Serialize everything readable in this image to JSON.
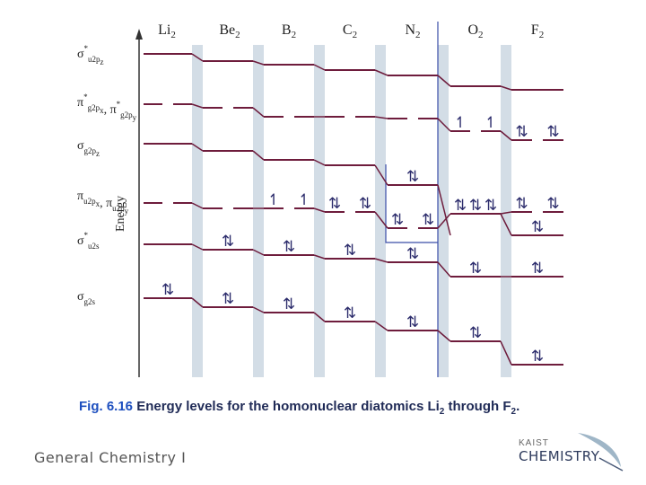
{
  "molecules": [
    {
      "base": "Li",
      "sub": "2"
    },
    {
      "base": "Be",
      "sub": "2"
    },
    {
      "base": "B",
      "sub": "2"
    },
    {
      "base": "C",
      "sub": "2"
    },
    {
      "base": "N",
      "sub": "2"
    },
    {
      "base": "O",
      "sub": "2"
    },
    {
      "base": "F",
      "sub": "2"
    }
  ],
  "orbital_labels": [
    {
      "key": "sigma_u2pz_star",
      "text": "σ",
      "star": "*",
      "sub": "u2p",
      "subsub": "z"
    },
    {
      "key": "pi_g2p_star",
      "text": "π",
      "star": "*",
      "sub": "g2p",
      "subsub": "x",
      "text2": "π",
      "star2": "*",
      "sub2": "g2p",
      "subsub2": "y"
    },
    {
      "key": "sigma_g2pz",
      "text": "σ",
      "sub": "g2p",
      "subsub": "z"
    },
    {
      "key": "pi_u2p",
      "text": "π",
      "sub": "u2p",
      "subsub": "x",
      "text2": "π",
      "sub2": "u2p",
      "subsub2": "y"
    },
    {
      "key": "sigma_u2s_star",
      "text": "σ",
      "star": "*",
      "sub": "u2s"
    },
    {
      "key": "sigma_g2s",
      "text": "σ",
      "sub": "g2s"
    }
  ],
  "axis_label": "Energy",
  "occupancy": {
    "Li2": {
      "sigma_g2s": 2
    },
    "Be2": {
      "sigma_g2s": 2,
      "sigma_u2s_star": 2
    },
    "B2": {
      "sigma_g2s": 2,
      "sigma_u2s_star": 2,
      "pi_u2p": "1,1"
    },
    "C2": {
      "sigma_g2s": 2,
      "sigma_u2s_star": 2,
      "pi_u2p": "2,2"
    },
    "N2": {
      "sigma_g2s": 2,
      "sigma_u2s_star": 2,
      "pi_u2p": "2,2",
      "sigma_g2pz": 2
    },
    "O2": {
      "sigma_g2s": 2,
      "sigma_u2s_star": 2,
      "sigma_g2pz": 2,
      "pi_u2p": "2,2",
      "pi_g2p_star": "1,1"
    },
    "F2": {
      "sigma_g2s": 2,
      "sigma_u2s_star": 2,
      "sigma_g2pz": 2,
      "pi_u2p": "2,2",
      "pi_g2p_star": "2,2"
    }
  },
  "caption": {
    "fig": "Fig. 6.16",
    "text1": " Energy levels for the homonuclear diatomics Li",
    "sub1": "2",
    "text2": " through F",
    "sub2": "2",
    "text3": "."
  },
  "footer": "General Chemistry I",
  "logo": {
    "top": "KAIST",
    "bottom": "CHEMISTRY"
  },
  "colors": {
    "level": "#6e1c3c",
    "band": "#d3dde6",
    "arrow": "#2c2c6c",
    "divider": "#3a4ea8"
  }
}
